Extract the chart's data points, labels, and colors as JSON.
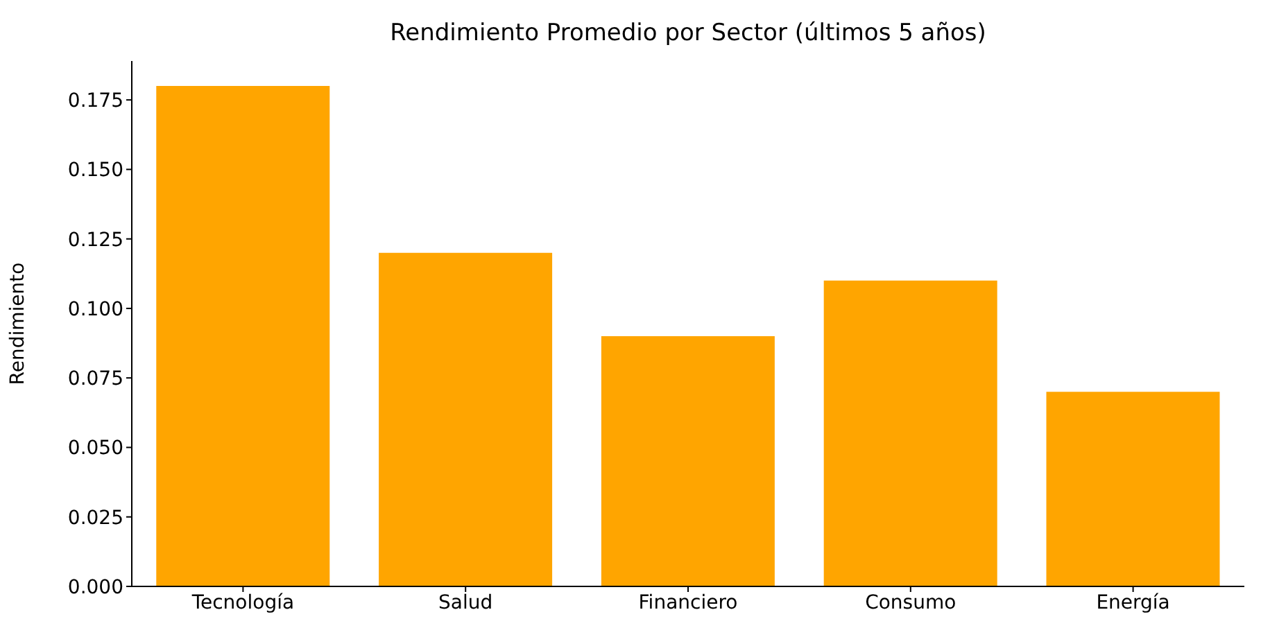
{
  "chart_data": {
    "type": "bar",
    "title": "Rendimiento Promedio por Sector (últimos 5 años)",
    "ylabel": "Rendimiento",
    "categories": [
      "Tecnología",
      "Salud",
      "Financiero",
      "Consumo",
      "Energía"
    ],
    "values": [
      0.18,
      0.12,
      0.09,
      0.11,
      0.07
    ],
    "color": "#ffa500",
    "ylim": [
      0,
      0.189
    ],
    "yticks": [
      {
        "value": 0,
        "label": "0.000"
      },
      {
        "value": 0.025,
        "label": "0.025"
      },
      {
        "value": 0.05,
        "label": "0.050"
      },
      {
        "value": 0.075,
        "label": "0.075"
      },
      {
        "value": 0.1,
        "label": "0.100"
      },
      {
        "value": 0.125,
        "label": "0.125"
      },
      {
        "value": 0.15,
        "label": "0.150"
      },
      {
        "value": 0.175,
        "label": "0.175"
      }
    ],
    "grid": false,
    "legend": false
  }
}
